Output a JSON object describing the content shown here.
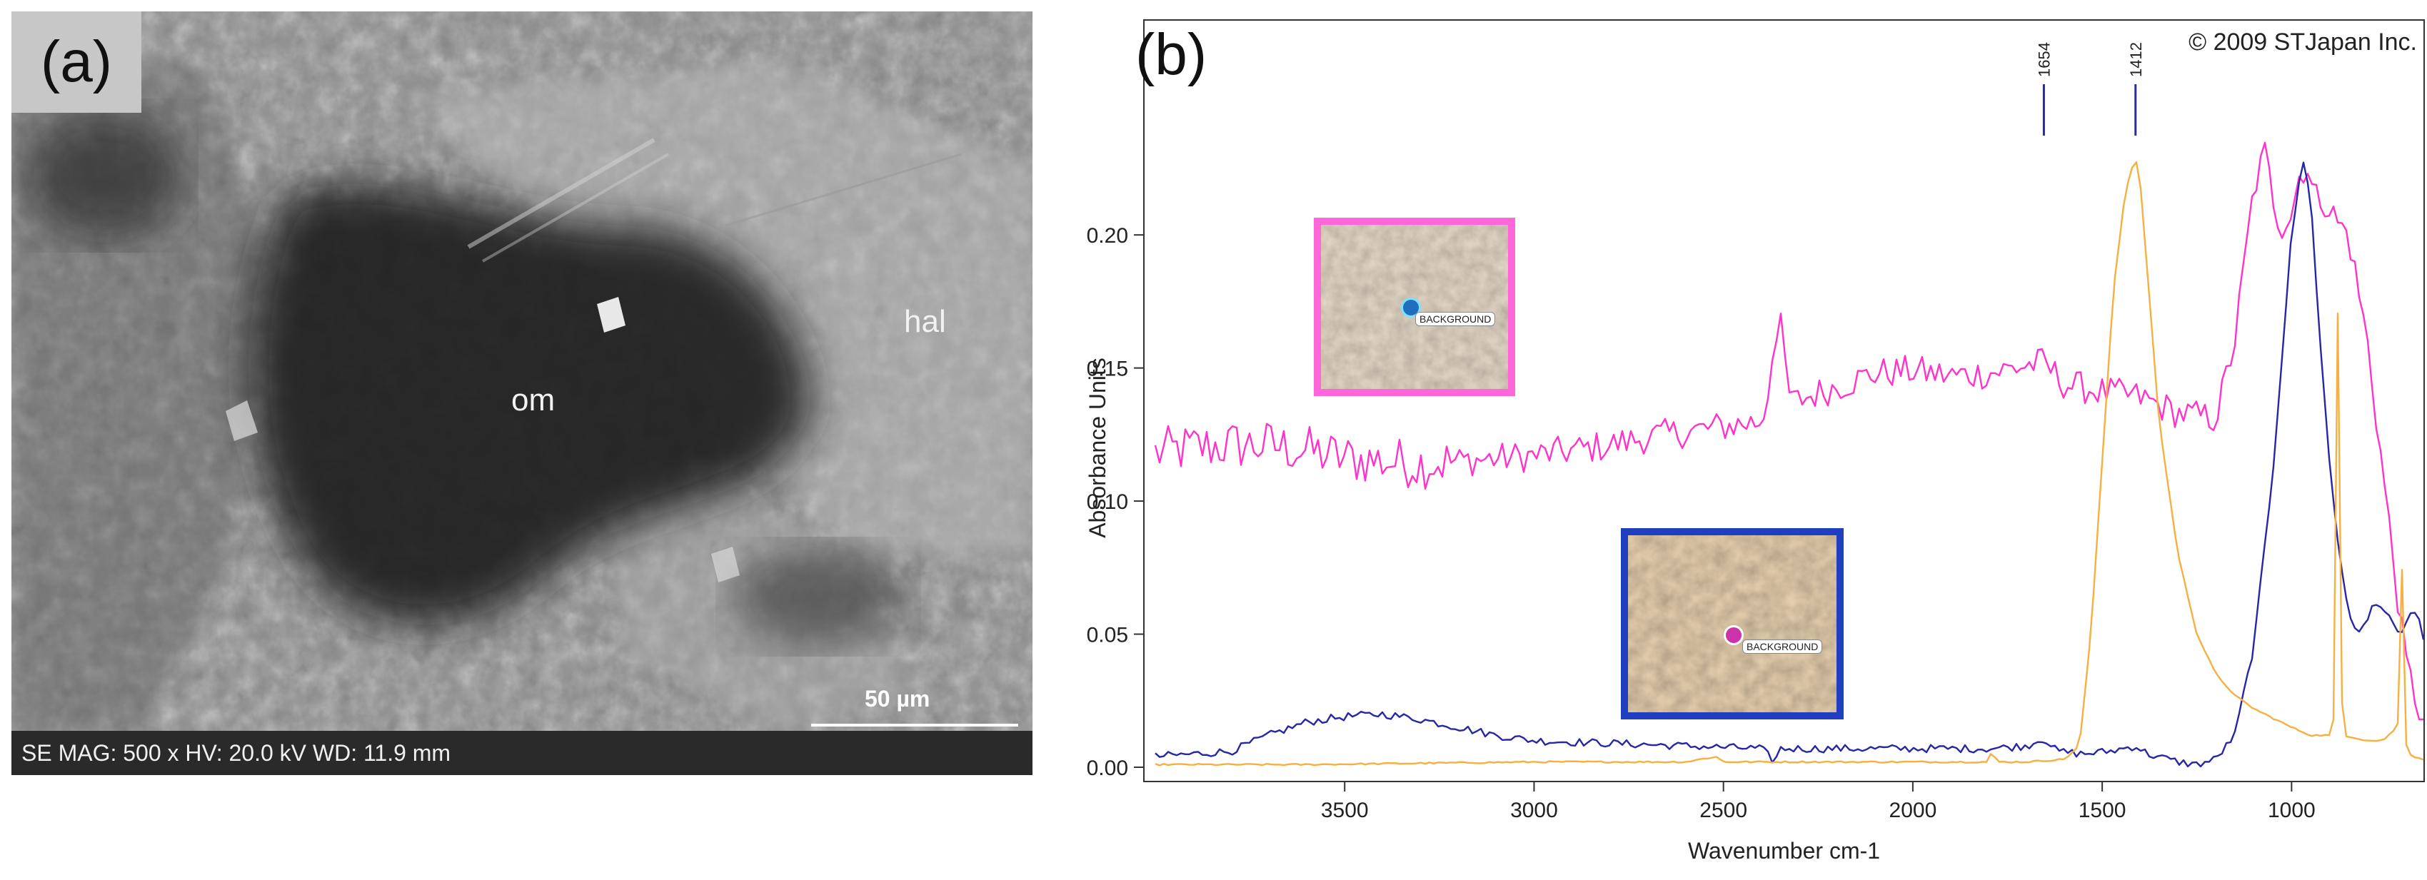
{
  "panel_a": {
    "tag": "(a)",
    "labels": {
      "om": "om",
      "hal": "hal"
    },
    "info_bar": "SE  MAG: 500 x  HV: 20.0 kV  WD: 11.9 mm",
    "scale_bar": "50 µm"
  },
  "panel_b": {
    "tag": "(b)",
    "copyright": "© 2009 STJapan Inc.",
    "inset_labels": [
      "BACKGROUND",
      "BACKGROUND"
    ]
  },
  "chart_data": {
    "type": "line",
    "title": "",
    "xlabel": "Wavenumber cm-1",
    "ylabel": "Absorbance Units",
    "xlim": [
      4000,
      650
    ],
    "ylim": [
      0,
      0.24
    ],
    "x_reversed": true,
    "xticks": [
      3500,
      3000,
      2500,
      2000,
      1500,
      1000
    ],
    "xtick_labels": [
      "3500",
      "3000",
      "2500",
      "2000",
      "1500",
      "1000"
    ],
    "yticks": [
      0,
      0.05,
      0.1,
      0.15,
      0.2
    ],
    "ytick_labels": [
      "0.00",
      "0.05",
      "0.10",
      "0.15",
      "0.20"
    ],
    "grid": false,
    "reference_lines": [
      {
        "x": 1654,
        "label": "1654"
      },
      {
        "x": 1412,
        "label": "1412"
      }
    ],
    "series": [
      {
        "color": "#ff33cc",
        "noise": 0.006,
        "x": [
          4000,
          3900,
          3800,
          3700,
          3600,
          3500,
          3400,
          3300,
          3200,
          3100,
          3000,
          2900,
          2800,
          2700,
          2600,
          2500,
          2450,
          2400,
          2380,
          2365,
          2355,
          2345,
          2335,
          2320,
          2300,
          2200,
          2100,
          2000,
          1900,
          1800,
          1700,
          1654,
          1600,
          1500,
          1400,
          1300,
          1200,
          1150,
          1100,
          1070,
          1050,
          1030,
          1000,
          980,
          960,
          950,
          940,
          920,
          900,
          880,
          850,
          800,
          750,
          700,
          650
        ],
        "y": [
          0.118,
          0.12,
          0.121,
          0.121,
          0.119,
          0.116,
          0.115,
          0.114,
          0.115,
          0.116,
          0.117,
          0.119,
          0.121,
          0.124,
          0.126,
          0.128,
          0.129,
          0.13,
          0.142,
          0.168,
          0.152,
          0.172,
          0.146,
          0.137,
          0.138,
          0.143,
          0.148,
          0.149,
          0.147,
          0.148,
          0.151,
          0.152,
          0.144,
          0.141,
          0.139,
          0.133,
          0.131,
          0.16,
          0.217,
          0.231,
          0.215,
          0.203,
          0.208,
          0.222,
          0.227,
          0.22,
          0.214,
          0.214,
          0.21,
          0.205,
          0.2,
          0.16,
          0.1,
          0.04,
          0.015
        ]
      },
      {
        "color": "#2626a6",
        "noise": 0.0015,
        "x": [
          4000,
          3800,
          3700,
          3600,
          3500,
          3400,
          3300,
          3200,
          3100,
          3000,
          2800,
          2600,
          2400,
          2365,
          2350,
          2200,
          2000,
          1800,
          1700,
          1654,
          1620,
          1550,
          1480,
          1412,
          1380,
          1300,
          1250,
          1200,
          1150,
          1100,
          1050,
          1000,
          970,
          950,
          930,
          900,
          870,
          850,
          820,
          800,
          780,
          760,
          740,
          720,
          700,
          680,
          660,
          650
        ],
        "y": [
          0.004,
          0.006,
          0.012,
          0.017,
          0.019,
          0.02,
          0.018,
          0.015,
          0.012,
          0.01,
          0.009,
          0.008,
          0.007,
          0.002,
          0.007,
          0.007,
          0.007,
          0.007,
          0.008,
          0.011,
          0.006,
          0.005,
          0.006,
          0.008,
          0.005,
          0.002,
          0.001,
          0.003,
          0.012,
          0.045,
          0.11,
          0.2,
          0.229,
          0.215,
          0.17,
          0.115,
          0.075,
          0.058,
          0.05,
          0.055,
          0.063,
          0.06,
          0.055,
          0.05,
          0.053,
          0.06,
          0.053,
          0.045
        ]
      },
      {
        "color": "#f5b041",
        "noise": 0.0003,
        "x": [
          4000,
          3600,
          3000,
          2600,
          2520,
          2500,
          2200,
          1850,
          1800,
          1790,
          1780,
          1700,
          1600,
          1560,
          1530,
          1500,
          1470,
          1440,
          1420,
          1412,
          1400,
          1380,
          1350,
          1300,
          1250,
          1200,
          1150,
          1100,
          1000,
          950,
          900,
          885,
          880,
          877,
          874,
          870,
          860,
          800,
          760,
          720,
          713,
          710,
          706,
          700,
          690,
          660,
          650
        ],
        "y": [
          0.001,
          0.001,
          0.002,
          0.002,
          0.004,
          0.002,
          0.002,
          0.002,
          0.002,
          0.007,
          0.002,
          0.002,
          0.003,
          0.008,
          0.05,
          0.115,
          0.18,
          0.215,
          0.226,
          0.229,
          0.22,
          0.185,
          0.13,
          0.08,
          0.05,
          0.035,
          0.027,
          0.022,
          0.015,
          0.012,
          0.012,
          0.02,
          0.12,
          0.2,
          0.13,
          0.03,
          0.012,
          0.01,
          0.01,
          0.015,
          0.06,
          0.09,
          0.05,
          0.01,
          0.005,
          0.003,
          0.003
        ]
      }
    ]
  }
}
